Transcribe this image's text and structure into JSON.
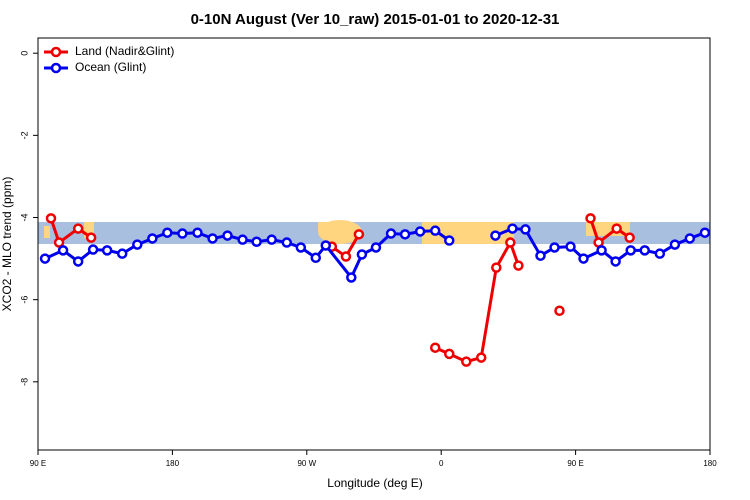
{
  "chart_data": {
    "type": "line",
    "title": "0-10N August (Ver 10_raw)   2015-01-01 to 2020-12-31",
    "xlabel": "Longitude (deg E)",
    "ylabel": "XCO2 - MLO trend (ppm)",
    "xlim": [
      90,
      540
    ],
    "ylim": [
      -9.66,
      0.37
    ],
    "xticks": [
      {
        "value": 90,
        "label": "90 E"
      },
      {
        "value": 180,
        "label": "180"
      },
      {
        "value": 270,
        "label": "90 W"
      },
      {
        "value": 360,
        "label": "0"
      },
      {
        "value": 450,
        "label": "90 E"
      },
      {
        "value": 540,
        "label": "180"
      }
    ],
    "yticks": [
      0,
      -2,
      -4,
      -6,
      -8
    ],
    "legend": "top-left",
    "series": [
      {
        "name": "Land (Nadir&Glint)",
        "color": "#ee0000",
        "x": [
          98.7,
          104.1,
          116.9,
          125.6,
          200,
          286.8,
          296.2,
          304.9,
          330,
          356.0,
          365.4,
          376.8,
          386.8,
          396.9,
          406.3,
          411.7,
          425,
          439.2,
          450,
          460.0,
          465.4,
          477.5,
          486.2
        ],
        "values": [
          -4.02,
          -4.61,
          -4.27,
          -4.49,
          null,
          -4.71,
          -4.95,
          -4.41,
          null,
          -7.17,
          -7.32,
          -7.51,
          -7.41,
          -5.22,
          -4.61,
          -5.17,
          null,
          -6.27,
          null,
          -4.02,
          -4.61,
          -4.27,
          -4.49
        ]
      },
      {
        "name": "Ocean (Glint)",
        "color": "#0000ee",
        "x": [
          94.7,
          106.8,
          116.9,
          126.9,
          136.3,
          146.4,
          156.5,
          166.6,
          176.6,
          186.7,
          196.8,
          206.9,
          216.9,
          227.0,
          236.4,
          246.5,
          256.6,
          266.0,
          276.0,
          282.7,
          299.8,
          306.9,
          316.3,
          326.4,
          335.8,
          345.9,
          356.0,
          365.4,
          380,
          396.3,
          407.7,
          416.4,
          426.5,
          435.9,
          446.6,
          455.3,
          467.4,
          476.8,
          486.9,
          496.3,
          506.4,
          516.5,
          526.5,
          536.6
        ],
        "values": [
          -5.0,
          -4.8,
          -5.07,
          -4.78,
          -4.8,
          -4.88,
          -4.66,
          -4.51,
          -4.37,
          -4.39,
          -4.37,
          -4.51,
          -4.44,
          -4.54,
          -4.59,
          -4.54,
          -4.61,
          -4.73,
          -4.98,
          -4.68,
          -5.46,
          -4.9,
          -4.73,
          -4.39,
          -4.41,
          -4.34,
          -4.32,
          -4.56,
          null,
          -4.44,
          -4.27,
          -4.29,
          -4.93,
          -4.73,
          -4.71,
          -5.0,
          -4.8,
          -5.07,
          -4.8,
          -4.8,
          -4.88,
          -4.66,
          -4.51,
          -4.37
        ]
      }
    ]
  }
}
